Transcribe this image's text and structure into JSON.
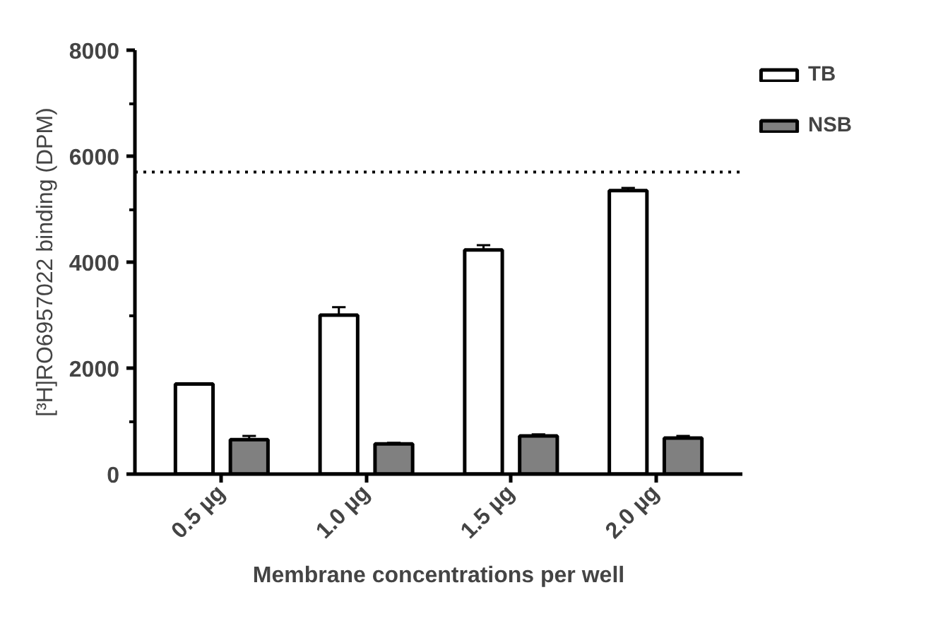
{
  "chart_data": {
    "type": "bar",
    "xlabel": "Membrane concentrations per well",
    "ylabel": "[³H]RO6957022 binding (DPM)",
    "categories": [
      "0.5 µg",
      "1.0 µg",
      "1.5 µg",
      "2.0 µg"
    ],
    "series": [
      {
        "name": "TB",
        "color": "#ffffff",
        "values": [
          1700,
          3000,
          4230,
          5350
        ],
        "errors": [
          null,
          150,
          90,
          50
        ]
      },
      {
        "name": "NSB",
        "color": "#808080",
        "values": [
          650,
          570,
          720,
          680
        ],
        "errors": [
          70,
          20,
          30,
          40
        ]
      }
    ],
    "ylim": [
      0,
      8000
    ],
    "yticks": [
      0,
      2000,
      4000,
      6000,
      8000
    ],
    "ref_lines": [
      {
        "axis": "y",
        "value": 5700,
        "color": "#000000",
        "line_style": "dotted"
      }
    ],
    "grid": false,
    "legend": "top right"
  }
}
